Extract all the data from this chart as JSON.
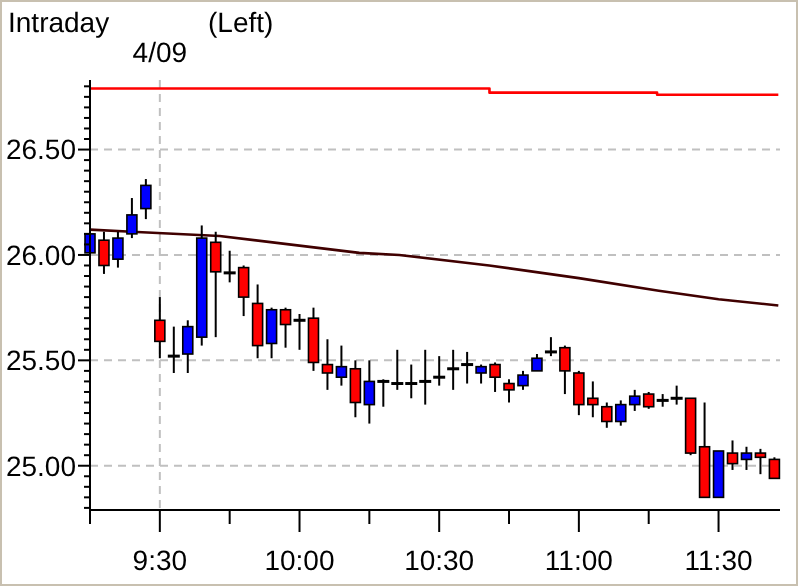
{
  "chart_data": {
    "type": "candlestick",
    "title": "Intraday",
    "subtitle": "(Left)",
    "x": [
      9.25,
      9.3,
      9.35,
      9.4,
      9.45,
      9.5,
      9.55,
      9.6,
      9.65,
      9.7,
      9.75,
      9.8,
      9.85,
      9.9,
      9.95,
      10,
      10.05,
      10.1,
      10.15,
      10.2,
      10.25,
      10.3,
      10.35,
      10.4,
      10.45,
      10.5,
      10.55,
      10.6,
      10.65,
      10.7,
      10.75,
      10.8,
      10.85,
      10.9,
      10.95,
      11,
      11.05,
      11.1,
      11.15,
      11.2,
      11.25,
      11.3,
      11.35,
      11.4,
      11.45,
      11.5,
      11.55,
      11.6,
      11.65,
      11.7
    ],
    "ohlc": [
      [
        26.01,
        26.18,
        26.0,
        26.1
      ],
      [
        26.07,
        26.11,
        25.91,
        25.95
      ],
      [
        25.98,
        26.11,
        25.94,
        26.08
      ],
      [
        26.1,
        26.27,
        26.08,
        26.19
      ],
      [
        26.22,
        26.36,
        26.17,
        26.33
      ],
      [
        25.69,
        25.8,
        25.51,
        25.59
      ],
      [
        25.52,
        25.66,
        25.44,
        25.52
      ],
      [
        25.53,
        25.69,
        25.44,
        25.66
      ],
      [
        25.61,
        26.14,
        25.57,
        26.08
      ],
      [
        26.06,
        26.11,
        25.61,
        25.92
      ],
      [
        25.92,
        26.02,
        25.87,
        25.91
      ],
      [
        25.94,
        25.95,
        25.71,
        25.8
      ],
      [
        25.77,
        25.86,
        25.51,
        25.57
      ],
      [
        25.58,
        25.75,
        25.51,
        25.74
      ],
      [
        25.74,
        25.75,
        25.56,
        25.67
      ],
      [
        25.69,
        25.72,
        25.55,
        25.69
      ],
      [
        25.7,
        25.75,
        25.45,
        25.49
      ],
      [
        25.48,
        25.6,
        25.36,
        25.44
      ],
      [
        25.42,
        25.57,
        25.38,
        25.47
      ],
      [
        25.46,
        25.5,
        25.23,
        25.3
      ],
      [
        25.29,
        25.5,
        25.2,
        25.4
      ],
      [
        25.4,
        25.41,
        25.28,
        25.4
      ],
      [
        25.39,
        25.55,
        25.36,
        25.39
      ],
      [
        25.39,
        25.48,
        25.32,
        25.39
      ],
      [
        25.4,
        25.55,
        25.29,
        25.4
      ],
      [
        25.42,
        25.52,
        25.38,
        25.42
      ],
      [
        25.46,
        25.55,
        25.36,
        25.46
      ],
      [
        25.48,
        25.54,
        25.39,
        25.48
      ],
      [
        25.44,
        25.48,
        25.39,
        25.47
      ],
      [
        25.48,
        25.49,
        25.35,
        25.42
      ],
      [
        25.39,
        25.41,
        25.3,
        25.36
      ],
      [
        25.38,
        25.45,
        25.36,
        25.43
      ],
      [
        25.45,
        25.53,
        25.45,
        25.51
      ],
      [
        25.54,
        25.61,
        25.52,
        25.54
      ],
      [
        25.56,
        25.57,
        25.34,
        25.45
      ],
      [
        25.44,
        25.45,
        25.24,
        25.29
      ],
      [
        25.32,
        25.4,
        25.23,
        25.29
      ],
      [
        25.28,
        25.3,
        25.18,
        25.21
      ],
      [
        25.21,
        25.31,
        25.19,
        25.29
      ],
      [
        25.29,
        25.36,
        25.26,
        25.33
      ],
      [
        25.34,
        25.35,
        25.27,
        25.28
      ],
      [
        25.31,
        25.34,
        25.28,
        25.31
      ],
      [
        25.32,
        25.38,
        25.29,
        25.32
      ],
      [
        25.32,
        25.32,
        25.05,
        25.06
      ],
      [
        25.09,
        25.3,
        24.85,
        24.85
      ],
      [
        24.85,
        25.07,
        24.85,
        25.07
      ],
      [
        25.06,
        25.12,
        24.98,
        25.01
      ],
      [
        25.03,
        25.09,
        24.98,
        25.06
      ],
      [
        25.06,
        25.08,
        24.96,
        25.04
      ],
      [
        25.03,
        25.04,
        24.94,
        24.94
      ]
    ],
    "colors": [
      "#0000ff",
      "#ff0000",
      "#0000ff",
      "#0000ff",
      "#0000ff",
      "#ff0000",
      "#000000",
      "#0000ff",
      "#0000ff",
      "#ff0000",
      "#000000",
      "#ff0000",
      "#ff0000",
      "#0000ff",
      "#ff0000",
      "#000000",
      "#ff0000",
      "#ff0000",
      "#0000ff",
      "#ff0000",
      "#0000ff",
      "#000000",
      "#000000",
      "#000000",
      "#000000",
      "#000000",
      "#000000",
      "#000000",
      "#0000ff",
      "#ff0000",
      "#ff0000",
      "#0000ff",
      "#0000ff",
      "#000000",
      "#ff0000",
      "#ff0000",
      "#ff0000",
      "#ff0000",
      "#0000ff",
      "#0000ff",
      "#ff0000",
      "#000000",
      "#000000",
      "#ff0000",
      "#ff0000",
      "#0000ff",
      "#ff0000",
      "#0000ff",
      "#ff0000",
      "#ff0000"
    ],
    "series": [
      {
        "type": "line",
        "color": "#ff0000",
        "x": [
          9.25,
          10.68,
          10.68,
          11.28,
          11.28,
          11.714
        ],
        "values": [
          26.79,
          26.79,
          26.77,
          26.77,
          26.76,
          26.76
        ]
      },
      {
        "type": "line",
        "color": "#400000",
        "x": [
          9.25,
          9.4,
          9.714,
          10.214,
          10.357,
          10.679,
          11.0,
          11.286,
          11.5,
          11.714
        ],
        "values": [
          26.12,
          26.11,
          26.09,
          26.01,
          26.0,
          25.95,
          25.89,
          25.83,
          25.79,
          25.76
        ]
      }
    ],
    "xlim": [
      9.25,
      11.72
    ],
    "xticks": [
      {
        "value": 9.25,
        "label": null
      },
      {
        "value": 9.5,
        "label": "9:30"
      },
      {
        "value": 9.75,
        "label": null
      },
      {
        "value": 10,
        "label": "10:00"
      },
      {
        "value": 10.25,
        "label": null
      },
      {
        "value": 10.5,
        "label": "10:30"
      },
      {
        "value": 10.75,
        "label": null
      },
      {
        "value": 11,
        "label": "11:00"
      },
      {
        "value": 11.25,
        "label": null
      },
      {
        "value": 11.5,
        "label": "11:30"
      }
    ],
    "ylim": [
      24.79,
      26.83
    ],
    "yticks": [
      {
        "value": 24.8,
        "label": null
      },
      {
        "value": 24.85,
        "label": null
      },
      {
        "value": 24.9,
        "label": null
      },
      {
        "value": 24.95,
        "label": null
      },
      {
        "value": 25,
        "label": "25.00"
      },
      {
        "value": 25.05,
        "label": null
      },
      {
        "value": 25.1,
        "label": null
      },
      {
        "value": 25.15,
        "label": null
      },
      {
        "value": 25.2,
        "label": null
      },
      {
        "value": 25.25,
        "label": null
      },
      {
        "value": 25.3,
        "label": null
      },
      {
        "value": 25.35,
        "label": null
      },
      {
        "value": 25.4,
        "label": null
      },
      {
        "value": 25.45,
        "label": null
      },
      {
        "value": 25.5,
        "label": "25.50"
      },
      {
        "value": 25.55,
        "label": null
      },
      {
        "value": 25.6,
        "label": null
      },
      {
        "value": 25.65,
        "label": null
      },
      {
        "value": 25.7,
        "label": null
      },
      {
        "value": 25.75,
        "label": null
      },
      {
        "value": 25.8,
        "label": null
      },
      {
        "value": 25.85,
        "label": null
      },
      {
        "value": 25.9,
        "label": null
      },
      {
        "value": 25.95,
        "label": null
      },
      {
        "value": 26,
        "label": "26.00"
      },
      {
        "value": 26.05,
        "label": null
      },
      {
        "value": 26.1,
        "label": null
      },
      {
        "value": 26.15,
        "label": null
      },
      {
        "value": 26.2,
        "label": null
      },
      {
        "value": 26.25,
        "label": null
      },
      {
        "value": 26.3,
        "label": null
      },
      {
        "value": 26.35,
        "label": null
      },
      {
        "value": 26.4,
        "label": null
      },
      {
        "value": 26.45,
        "label": null
      },
      {
        "value": 26.5,
        "label": "26.50"
      },
      {
        "value": 26.55,
        "label": null
      },
      {
        "value": 26.6,
        "label": null
      },
      {
        "value": 26.65,
        "label": null
      },
      {
        "value": 26.7,
        "label": null
      },
      {
        "value": 26.75,
        "label": null
      },
      {
        "value": 26.8,
        "label": null
      }
    ],
    "grid": "y",
    "ref_lines": [
      {
        "axis": "x",
        "value": 9.5,
        "label": "4/09",
        "color": "#c0c0c0",
        "line_style": "dashed"
      }
    ]
  }
}
